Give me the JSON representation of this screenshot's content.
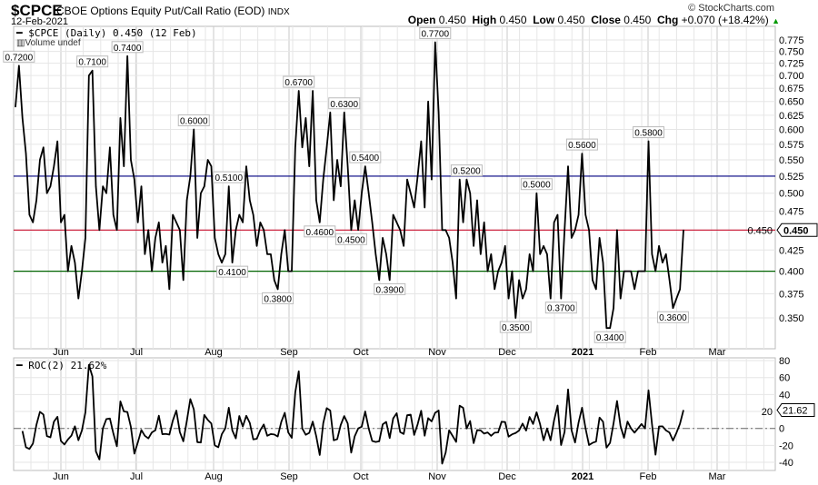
{
  "header": {
    "symbol": "$CPCE",
    "name": "CBOE Options Equity Put/Call Ratio (EOD)",
    "exchange": "INDX",
    "date": "12-Feb-2021",
    "watermark": "© StockCharts.com",
    "open_label": "Open",
    "open": "0.450",
    "high_label": "High",
    "high": "0.450",
    "low_label": "Low",
    "low": "0.450",
    "close_label": "Close",
    "close": "0.450",
    "chg_label": "Chg",
    "chg": "+0.070 (+18.42%)"
  },
  "legend": {
    "price": "$CPCE (Daily) 0.450 (12 Feb)",
    "volume": "Volume undef",
    "roc": "ROC(2) 21.62%"
  },
  "chart_data": [
    {
      "type": "line",
      "title": "$CPCE (Daily)",
      "scale": "log",
      "ylim": [
        0.32,
        0.8
      ],
      "yticks": [
        "0.775",
        "0.750",
        "0.725",
        "0.700",
        "0.675",
        "0.650",
        "0.625",
        "0.600",
        "0.575",
        "0.550",
        "0.525",
        "0.500",
        "0.475",
        "0.450",
        "0.425",
        "0.400",
        "0.375",
        "0.350"
      ],
      "xticks": [
        "Jun",
        "Jul",
        "Aug",
        "Sep",
        "Oct",
        "Nov",
        "Dec",
        "2021",
        "Feb",
        "Mar"
      ],
      "last_value_label": "0.450",
      "hlines": [
        {
          "value": 0.525,
          "color": "#000080"
        },
        {
          "value": 0.45,
          "color": "#c8102e"
        },
        {
          "value": 0.4,
          "color": "#006400"
        }
      ],
      "line_color": "#000000",
      "values": [
        0.64,
        0.72,
        0.62,
        0.56,
        0.47,
        0.46,
        0.49,
        0.55,
        0.57,
        0.5,
        0.51,
        0.54,
        0.58,
        0.46,
        0.47,
        0.4,
        0.43,
        0.41,
        0.37,
        0.4,
        0.44,
        0.7,
        0.71,
        0.51,
        0.45,
        0.51,
        0.5,
        0.57,
        0.47,
        0.45,
        0.62,
        0.54,
        0.74,
        0.55,
        0.52,
        0.46,
        0.51,
        0.42,
        0.45,
        0.4,
        0.44,
        0.46,
        0.41,
        0.43,
        0.38,
        0.47,
        0.46,
        0.45,
        0.39,
        0.49,
        0.525,
        0.6,
        0.44,
        0.5,
        0.51,
        0.55,
        0.54,
        0.44,
        0.42,
        0.41,
        0.42,
        0.51,
        0.41,
        0.45,
        0.47,
        0.46,
        0.54,
        0.49,
        0.47,
        0.43,
        0.46,
        0.45,
        0.42,
        0.42,
        0.39,
        0.38,
        0.42,
        0.45,
        0.4,
        0.4,
        0.57,
        0.67,
        0.57,
        0.62,
        0.54,
        0.67,
        0.49,
        0.46,
        0.52,
        0.57,
        0.63,
        0.49,
        0.55,
        0.51,
        0.63,
        0.54,
        0.45,
        0.49,
        0.45,
        0.5,
        0.54,
        0.5,
        0.46,
        0.42,
        0.39,
        0.44,
        0.42,
        0.39,
        0.47,
        0.46,
        0.45,
        0.43,
        0.52,
        0.5,
        0.48,
        0.525,
        0.58,
        0.48,
        0.65,
        0.52,
        0.77,
        0.63,
        0.45,
        0.45,
        0.44,
        0.41,
        0.37,
        0.52,
        0.46,
        0.52,
        0.5,
        0.43,
        0.49,
        0.42,
        0.46,
        0.4,
        0.42,
        0.38,
        0.4,
        0.41,
        0.43,
        0.37,
        0.4,
        0.35,
        0.39,
        0.37,
        0.38,
        0.42,
        0.4,
        0.5,
        0.42,
        0.43,
        0.42,
        0.37,
        0.46,
        0.47,
        0.37,
        0.45,
        0.54,
        0.44,
        0.45,
        0.47,
        0.56,
        0.47,
        0.45,
        0.39,
        0.38,
        0.44,
        0.41,
        0.34,
        0.34,
        0.36,
        0.45,
        0.37,
        0.4,
        0.4,
        0.4,
        0.38,
        0.4,
        0.4,
        0.4,
        0.58,
        0.42,
        0.4,
        0.43,
        0.41,
        0.42,
        0.39,
        0.36,
        0.37,
        0.38,
        0.45
      ],
      "annotations": [
        {
          "index": 1,
          "label": "0.7200"
        },
        {
          "index": 22,
          "label": "0.7100"
        },
        {
          "index": 32,
          "label": "0.7400"
        },
        {
          "index": 51,
          "label": "0.6000"
        },
        {
          "index": 61,
          "label": "0.5100"
        },
        {
          "index": 62,
          "label": "0.4100"
        },
        {
          "index": 75,
          "label": "0.3800"
        },
        {
          "index": 81,
          "label": "0.6700"
        },
        {
          "index": 87,
          "label": "0.4600"
        },
        {
          "index": 94,
          "label": "0.6300"
        },
        {
          "index": 96,
          "label": "0.4500"
        },
        {
          "index": 100,
          "label": "0.5400"
        },
        {
          "index": 107,
          "label": "0.3900"
        },
        {
          "index": 120,
          "label": "0.7700"
        },
        {
          "index": 129,
          "label": "0.5200"
        },
        {
          "index": 143,
          "label": "0.3500"
        },
        {
          "index": 149,
          "label": "0.5000"
        },
        {
          "index": 156,
          "label": "0.3700"
        },
        {
          "index": 162,
          "label": "0.5600"
        },
        {
          "index": 170,
          "label": "0.3400"
        },
        {
          "index": 181,
          "label": "0.5800"
        },
        {
          "index": 188,
          "label": "0.3600"
        }
      ]
    },
    {
      "type": "line",
      "title": "ROC(2)",
      "period": 2,
      "ylim": [
        -50,
        85
      ],
      "yticks": [
        "80",
        "60",
        "40",
        "20",
        "0",
        "-20",
        "-40"
      ],
      "last_value_label": "21.62",
      "line_color": "#000000"
    }
  ]
}
